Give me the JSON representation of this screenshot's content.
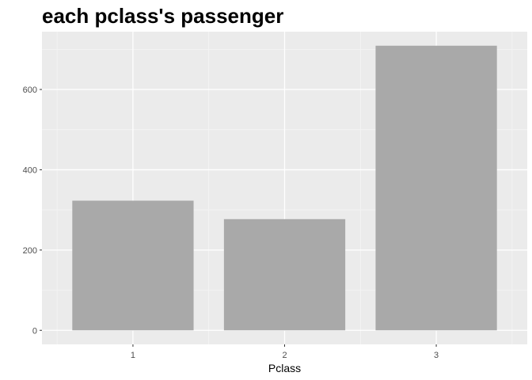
{
  "chart_data": {
    "type": "bar",
    "title": "each pclass's passenger",
    "xlabel": "Pclass",
    "ylabel": "",
    "categories": [
      "1",
      "2",
      "3"
    ],
    "values": [
      323,
      277,
      709
    ],
    "ylim": [
      -35,
      744
    ],
    "y_ticks": [
      0,
      200,
      400,
      600
    ],
    "y_tick_labels": [
      "0",
      "200",
      "400",
      "600"
    ],
    "grid": true,
    "legend": "none",
    "colors": {
      "bar": "#a9a9a9",
      "panel_background": "#ebebeb",
      "grid_major": "#ffffff",
      "grid_minor": "#f5f5f5",
      "tick_mark": "#333333",
      "tick_text": "#4d4d4d"
    }
  }
}
